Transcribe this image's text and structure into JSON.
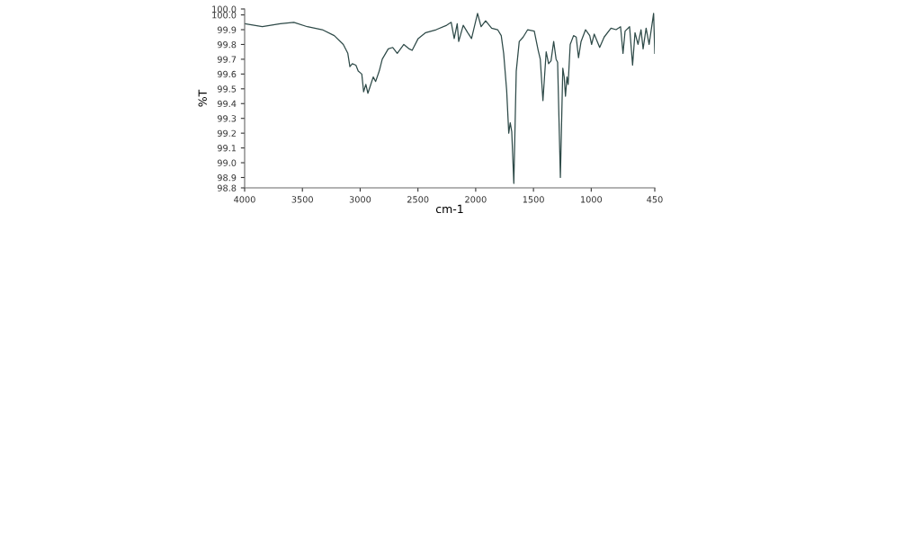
{
  "chart_data": {
    "type": "line",
    "xlabel": "cm-1",
    "ylabel": "%T",
    "x": [
      4000,
      3847,
      3691,
      3574,
      3457,
      3328,
      3224,
      3146,
      3107,
      3089,
      3068,
      3037,
      3017,
      2986,
      2970,
      2951,
      2933,
      2912,
      2887,
      2866,
      2835,
      2809,
      2757,
      2718,
      2679,
      2622,
      2575,
      2550,
      2498,
      2433,
      2342,
      2251,
      2212,
      2186,
      2160,
      2147,
      2108,
      2069,
      2036,
      1984,
      1953,
      1914,
      1862,
      1810,
      1779,
      1758,
      1732,
      1714,
      1701,
      1688,
      1670,
      1649,
      1623,
      1589,
      1550,
      1493,
      1459,
      1441,
      1418,
      1390,
      1369,
      1348,
      1325,
      1304,
      1291,
      1267,
      1246,
      1234,
      1223,
      1210,
      1200,
      1182,
      1153,
      1130,
      1110,
      1088,
      1049,
      1013,
      997,
      974,
      927,
      888,
      829,
      785,
      746,
      725,
      707,
      668,
      642,
      621,
      595,
      569,
      551,
      525,
      499,
      473,
      460,
      450
    ],
    "series": [
      {
        "color": "#2e4a48",
        "values": [
          99.94,
          99.92,
          99.94,
          99.95,
          99.92,
          99.9,
          99.86,
          99.8,
          99.74,
          99.65,
          99.67,
          99.66,
          99.62,
          99.6,
          99.48,
          99.53,
          99.47,
          99.52,
          99.58,
          99.55,
          99.62,
          99.7,
          99.77,
          99.78,
          99.74,
          99.8,
          99.77,
          99.76,
          99.84,
          99.88,
          99.9,
          99.93,
          99.95,
          99.84,
          99.94,
          99.82,
          99.93,
          99.88,
          99.84,
          100.01,
          99.92,
          99.96,
          99.91,
          99.9,
          99.86,
          99.74,
          99.49,
          99.2,
          99.27,
          99.21,
          98.86,
          99.62,
          99.82,
          99.85,
          99.9,
          99.89,
          99.76,
          99.7,
          99.42,
          99.75,
          99.67,
          99.69,
          99.82,
          99.7,
          99.68,
          98.9,
          99.64,
          99.58,
          99.45,
          99.58,
          99.53,
          99.8,
          99.86,
          99.85,
          99.71,
          99.82,
          99.9,
          99.86,
          99.8,
          99.87,
          99.78,
          99.85,
          99.91,
          99.9,
          99.92,
          99.74,
          99.89,
          99.92,
          99.66,
          99.88,
          99.8,
          99.9,
          99.77,
          99.91,
          99.8,
          99.94,
          100.01,
          99.74
        ]
      }
    ],
    "xlim": [
      4000,
      450
    ],
    "xticks": [
      4000,
      3500,
      3000,
      2500,
      2000,
      1500,
      1000,
      450
    ],
    "ylim": [
      98.83,
      100.04
    ],
    "yticks": [
      {
        "value": 98.83,
        "label": "98.8"
      },
      98.9,
      {
        "value": 99.0,
        "label": "99.0"
      },
      99.1,
      99.2,
      99.3,
      99.4,
      99.5,
      99.6,
      99.7,
      99.8,
      99.9,
      {
        "value": 100.0,
        "label": "100.0"
      },
      {
        "value": 100.04,
        "label": "100.0"
      }
    ],
    "grid": false,
    "legend": false,
    "marker": "none",
    "line_style": "solid"
  }
}
